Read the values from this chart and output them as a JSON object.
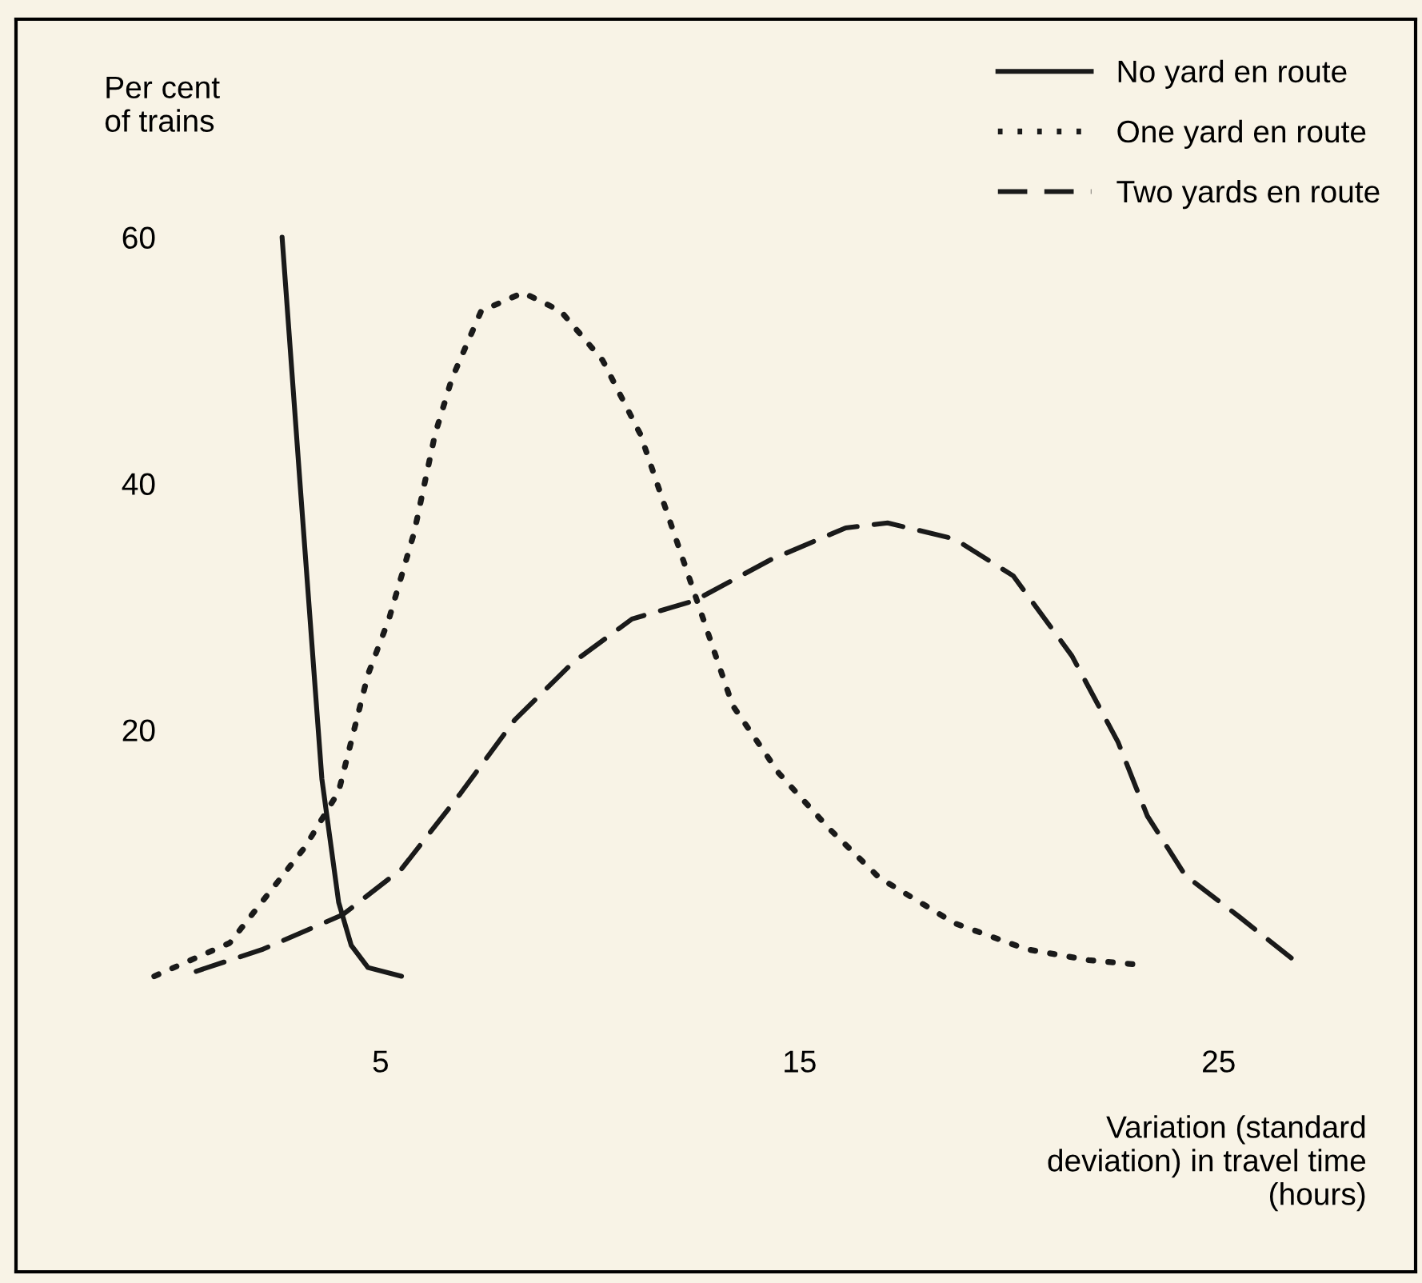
{
  "chart_data": {
    "type": "line",
    "xlabel": "Variation (standard\ndeviation) in travel time\n(hours)",
    "ylabel": "Per cent\nof trains",
    "xlim": [
      -3.7,
      29.7
    ],
    "ylim": [
      -24,
      77.7
    ],
    "xticks": [
      5,
      15,
      25
    ],
    "yticks": [
      20,
      40,
      60
    ],
    "grid": false,
    "legend": "top right",
    "marker": "none",
    "series": [
      {
        "name": "No yard en route",
        "color": "#1a1a1a",
        "line_style": "solid",
        "x": [
          2.65,
          3.1,
          3.6,
          4.0,
          4.3,
          4.7,
          5.5
        ],
        "values": [
          60,
          39,
          16,
          6,
          2.5,
          0.7,
          0
        ]
      },
      {
        "name": "One yard en route",
        "color": "#1a1a1a",
        "line_style": "dotted",
        "x": [
          -0.4,
          1.4,
          3.2,
          4.0,
          4.7,
          5.2,
          5.8,
          6.3,
          6.7,
          7.4,
          8.4,
          9.3,
          10.3,
          11.2,
          12.2,
          13.4,
          14.5,
          15.7,
          16.9,
          18.7,
          20.4,
          21.9,
          23.2
        ],
        "values": [
          0,
          2.7,
          10.5,
          15,
          24.5,
          29,
          36,
          44,
          48.5,
          54,
          55.5,
          54,
          50,
          44,
          34,
          22,
          16.5,
          12,
          8,
          4.3,
          2.2,
          1.3,
          0.9
        ]
      },
      {
        "name": "Two yards en route",
        "color": "#1a1a1a",
        "line_style": "dashed",
        "x": [
          0.6,
          2.2,
          4.1,
          5.5,
          6.9,
          8.2,
          9.6,
          11.0,
          12.5,
          14.3,
          16.1,
          17.1,
          18.7,
          20.1,
          21.5,
          22.6,
          23.3,
          24.2,
          25.5,
          26.8
        ],
        "values": [
          0.4,
          2.2,
          5,
          8.7,
          14.8,
          20.8,
          25.5,
          29,
          30.5,
          33.8,
          36.4,
          36.8,
          35.5,
          32.5,
          26,
          19,
          13,
          8.2,
          4.8,
          1.3
        ]
      }
    ]
  }
}
